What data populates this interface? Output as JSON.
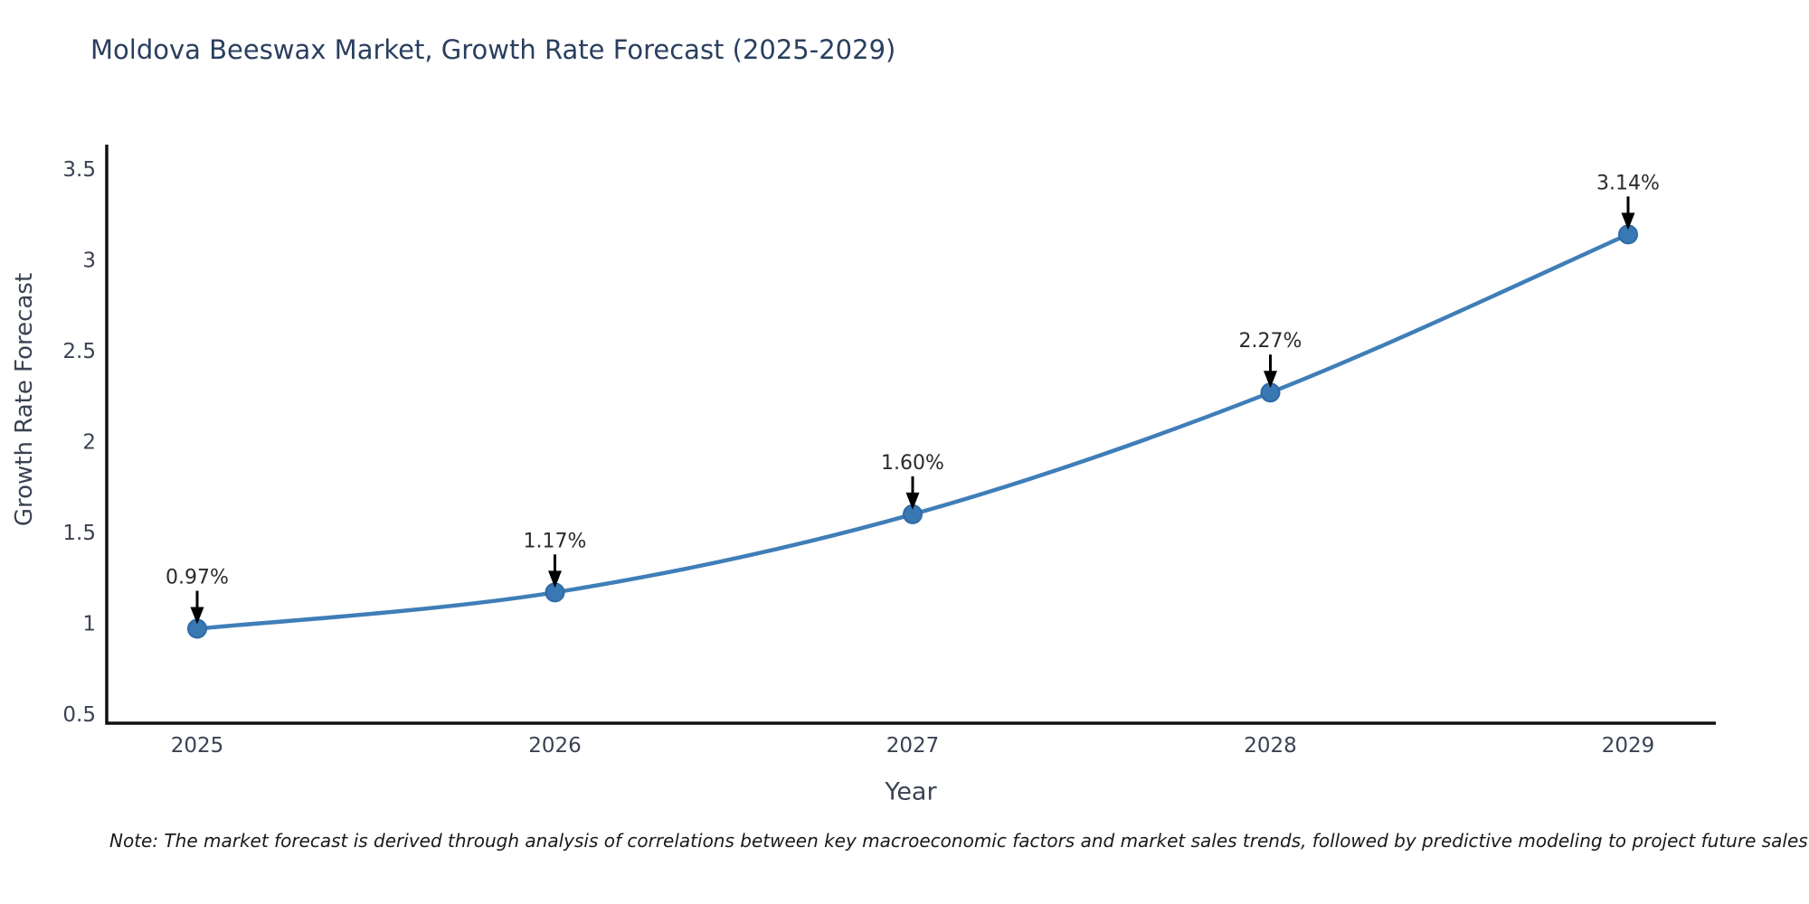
{
  "title": "Moldova Beeswax Market, Growth Rate Forecast (2025-2029)",
  "note": "Note: The market forecast is derived through analysis of correlations between key macroeconomic factors and market sales trends, followed by predictive modeling to project future sales",
  "chart_data": {
    "type": "line",
    "title": "Moldova Beeswax Market, Growth Rate Forecast (2025-2029)",
    "xlabel": "Year",
    "ylabel": "Growth Rate Forecast",
    "categories": [
      "2025",
      "2026",
      "2027",
      "2028",
      "2029"
    ],
    "values": [
      0.97,
      1.17,
      1.6,
      2.27,
      3.14
    ],
    "data_labels": [
      "0.97%",
      "1.17%",
      "1.60%",
      "2.27%",
      "3.14%"
    ],
    "ylim": [
      0.5,
      3.5
    ],
    "yticks": [
      0.5,
      1,
      1.5,
      2,
      2.5,
      3,
      3.5
    ],
    "grid": false,
    "legend": "none",
    "line_color": "#3f7eb8",
    "marker_color": "#3a78b4",
    "marker_edge_color": "#2d6aa8",
    "annotation_arrow_color": "#000000",
    "axis_color": "#111111",
    "title_color": "#2a3f5f",
    "tick_color": "#3b4252"
  }
}
